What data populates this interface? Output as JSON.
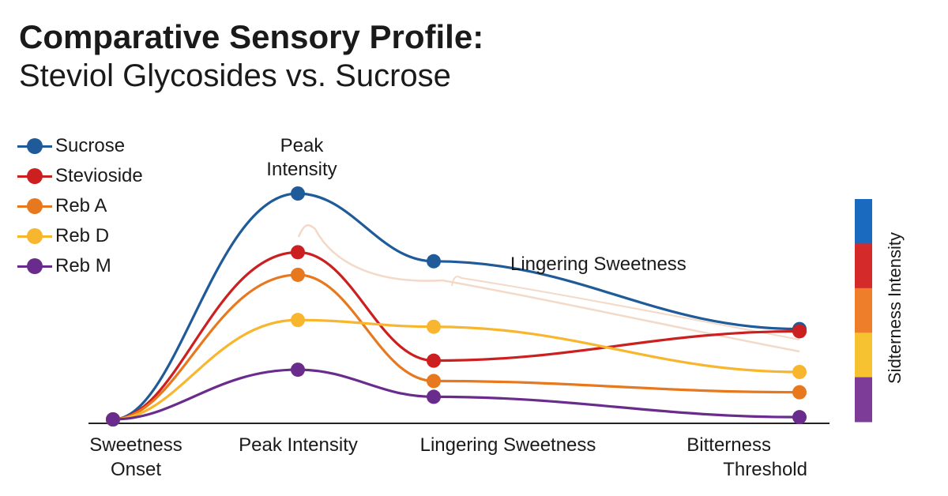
{
  "chart_data": {
    "type": "line",
    "title": "Comparative Sensory Profile:",
    "subtitle": "Steviol Glycosides vs. Sucrose",
    "categories": [
      "Sweetness\nOnset",
      "Peak Intensity",
      "Lingering Sweetness",
      "Bitterness\nThreshold"
    ],
    "tick_labels": {
      "onset_1": "Sweetness",
      "onset_2": "Onset",
      "peak": "Peak Intensity",
      "lingering": "Lingering Sweetness",
      "bitter_1": "Bitterness",
      "bitter_2": "Threshold"
    },
    "annotations": {
      "peak_1": "Peak",
      "peak_2": "Intensity",
      "lingering": "Lingering Sweetness"
    },
    "legend_placement": "top-left",
    "grid": false,
    "ylim": [
      0,
      100
    ],
    "series": [
      {
        "name": "Sucrose",
        "color": "#1f5a99",
        "values": [
          0,
          100,
          70,
          40
        ]
      },
      {
        "name": "Stevioside",
        "color": "#cc1f1f",
        "values": [
          0,
          74,
          26,
          39
        ]
      },
      {
        "name": "Reb A",
        "color": "#e8781d",
        "values": [
          0,
          64,
          17,
          12
        ]
      },
      {
        "name": "Reb D",
        "color": "#f8b62e",
        "values": [
          0,
          44,
          41,
          21
        ]
      },
      {
        "name": "Reb M",
        "color": "#6a2c8c",
        "values": [
          0,
          22,
          10,
          1
        ]
      }
    ],
    "colorbar": {
      "label": "Sidterness Intensity",
      "colors": [
        "#1a6bbf",
        "#d42a2a",
        "#ee7e2a",
        "#f7c232",
        "#7d3c98"
      ]
    }
  }
}
